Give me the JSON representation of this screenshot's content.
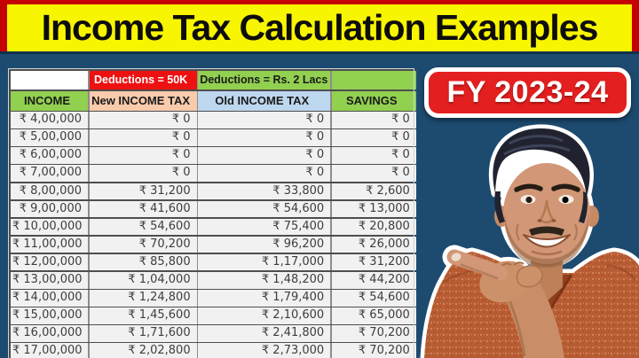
{
  "banner": {
    "title": "Income Tax Calculation Examples"
  },
  "badge": {
    "label": "FY 2023-24"
  },
  "table": {
    "group_header": {
      "income_spacer": "",
      "new_tax": "Deductions = 50K",
      "old_tax": "Deductions = Rs. 2 Lacs",
      "savings_spacer": ""
    },
    "columns": [
      {
        "key": "income",
        "label": "INCOME"
      },
      {
        "key": "new_tax",
        "label": "New INCOME TAX"
      },
      {
        "key": "old_tax",
        "label": "Old INCOME TAX"
      },
      {
        "key": "savings",
        "label": "SAVINGS"
      }
    ],
    "rows": [
      {
        "income": "₹ 4,00,000",
        "new_tax": "₹ 0",
        "old_tax": "₹ 0",
        "savings": "₹ 0"
      },
      {
        "income": "₹ 5,00,000",
        "new_tax": "₹ 0",
        "old_tax": "₹ 0",
        "savings": "₹ 0"
      },
      {
        "income": "₹ 6,00,000",
        "new_tax": "₹ 0",
        "old_tax": "₹ 0",
        "savings": "₹ 0"
      },
      {
        "income": "₹ 7,00,000",
        "new_tax": "₹ 0",
        "old_tax": "₹ 0",
        "savings": "₹ 0"
      },
      {
        "income": "₹ 8,00,000",
        "new_tax": "₹ 31,200",
        "old_tax": "₹ 33,800",
        "savings": "₹ 2,600"
      },
      {
        "income": "₹ 9,00,000",
        "new_tax": "₹ 41,600",
        "old_tax": "₹ 54,600",
        "savings": "₹ 13,000"
      },
      {
        "income": "₹ 10,00,000",
        "new_tax": "₹ 54,600",
        "old_tax": "₹ 75,400",
        "savings": "₹ 20,800"
      },
      {
        "income": "₹ 11,00,000",
        "new_tax": "₹ 70,200",
        "old_tax": "₹ 96,200",
        "savings": "₹ 26,000"
      },
      {
        "income": "₹ 12,00,000",
        "new_tax": "₹ 85,800",
        "old_tax": "₹ 1,17,000",
        "savings": "₹ 31,200"
      },
      {
        "income": "₹ 13,00,000",
        "new_tax": "₹ 1,04,000",
        "old_tax": "₹ 1,48,200",
        "savings": "₹ 44,200"
      },
      {
        "income": "₹ 14,00,000",
        "new_tax": "₹ 1,24,800",
        "old_tax": "₹ 1,79,400",
        "savings": "₹ 54,600"
      },
      {
        "income": "₹ 15,00,000",
        "new_tax": "₹ 1,45,600",
        "old_tax": "₹ 2,10,600",
        "savings": "₹ 65,000"
      },
      {
        "income": "₹ 16,00,000",
        "new_tax": "₹ 1,71,600",
        "old_tax": "₹ 2,41,800",
        "savings": "₹ 70,200"
      },
      {
        "income": "₹ 17,00,000",
        "new_tax": "₹ 2,02,800",
        "old_tax": "₹ 2,73,000",
        "savings": "₹ 70,200"
      }
    ]
  },
  "colors": {
    "background": "#1d4b70",
    "banner_bg": "#f8f500",
    "banner_border": "#c40000",
    "header_green": "#92d050",
    "header_red": "#ee1111",
    "header_peach": "#f8cbad",
    "header_blue": "#bdd7ee",
    "row_bg": "#f1f1f1",
    "badge_red": "#e41f1f"
  }
}
